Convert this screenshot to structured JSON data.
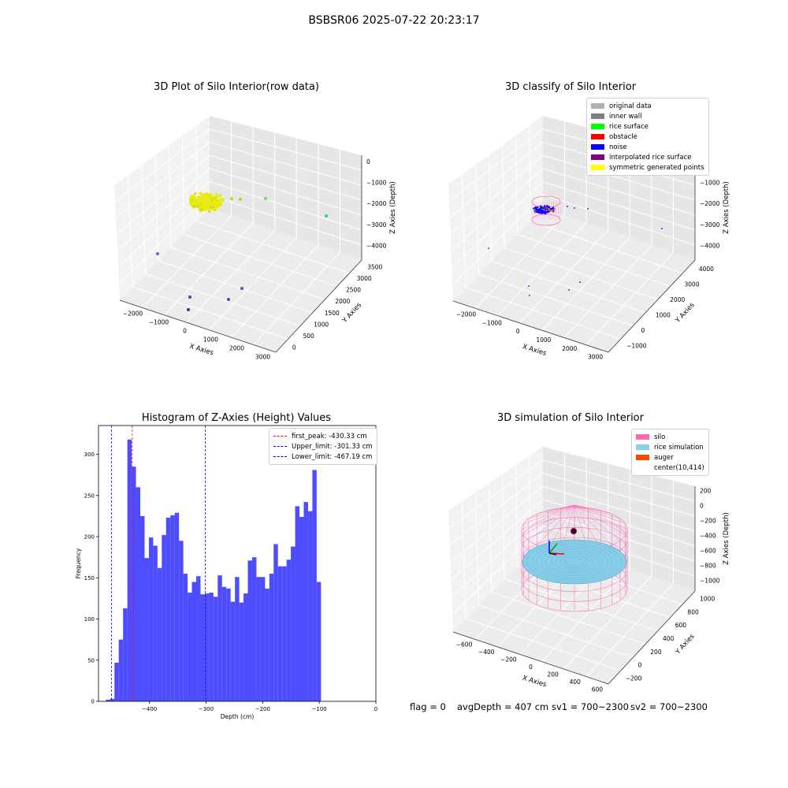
{
  "figure": {
    "suptitle": "BSBSR06 2025-07-22 20:23:17"
  },
  "panel_raw": {
    "title": "3D Plot of Silo Interior(row data)",
    "xlabel": "X Axies",
    "ylabel": "Y Axies",
    "zlabel": "Z Axies (Depth)",
    "xticks": [
      "−2000",
      "−1000",
      "0",
      "1000",
      "2000",
      "3000"
    ],
    "yticks": [
      "0",
      "500",
      "1000",
      "1500",
      "2000",
      "2500",
      "3000",
      "3500"
    ],
    "zticks": [
      "0",
      "−1000",
      "−2000",
      "−3000",
      "−4000"
    ]
  },
  "panel_classify": {
    "title": "3D classify of Silo Interior",
    "xlabel": "X Axies",
    "ylabel": "Y Axies",
    "zlabel": "Z Axies (Depth)",
    "xticks": [
      "−2000",
      "−1000",
      "0",
      "1000",
      "2000",
      "3000"
    ],
    "yticks": [
      "−1000",
      "0",
      "1000",
      "2000",
      "3000",
      "4000"
    ],
    "zticks": [
      "0",
      "−1000",
      "−2000",
      "−3000",
      "−4000"
    ],
    "legend": [
      {
        "label": "original data",
        "color": "#b0b0b0"
      },
      {
        "label": "inner wall",
        "color": "#808080"
      },
      {
        "label": "rice surface",
        "color": "#00ff00"
      },
      {
        "label": "obstacle",
        "color": "#ff0000"
      },
      {
        "label": "noise",
        "color": "#0000ff"
      },
      {
        "label": "interpolated rice surface",
        "color": "#800080"
      },
      {
        "label": "symmetric generated points",
        "color": "#ffff00"
      }
    ]
  },
  "panel_sim": {
    "title": "3D simulation of Silo Interior",
    "xlabel": "X Axies",
    "ylabel": "Y Axies",
    "zlabel": "Z Axies (Depth)",
    "xticks": [
      "−600",
      "−400",
      "−200",
      "0",
      "200",
      "400",
      "600"
    ],
    "yticks": [
      "−200",
      "0",
      "200",
      "400",
      "600",
      "800",
      "1000"
    ],
    "zticks": [
      "200",
      "0",
      "−200",
      "−400",
      "−600",
      "−800",
      "−1000"
    ],
    "legend": [
      {
        "label": "silo",
        "color": "#ff69b4"
      },
      {
        "label": "rice simulation",
        "color": "#87ceeb"
      },
      {
        "label": "auger",
        "color": "#ff4500"
      },
      {
        "label": "center(10,414)",
        "color": "#ffffff"
      }
    ]
  },
  "chart_data": {
    "type": "bar",
    "title": "Histogram of Z-Axies (Height) Values",
    "xlabel": "Depth (cm)",
    "ylabel": "Frequency",
    "xlim": [
      -490,
      0
    ],
    "ylim": [
      0,
      335
    ],
    "xticks": [
      -400,
      -300,
      -200,
      -100,
      0
    ],
    "yticks": [
      0,
      50,
      100,
      150,
      200,
      250,
      300
    ],
    "xtick_labels": [
      "−400",
      "−300",
      "−200",
      "−100",
      "0"
    ],
    "bar_color": "#4d4dff",
    "bin_start": -477,
    "bin_width": 7.6,
    "values": [
      2,
      3,
      47,
      75,
      113,
      318,
      285,
      260,
      225,
      174,
      199,
      189,
      162,
      202,
      223,
      226,
      229,
      195,
      155,
      132,
      145,
      152,
      130,
      131,
      132,
      127,
      153,
      139,
      137,
      121,
      151,
      120,
      131,
      171,
      175,
      151,
      151,
      137,
      155,
      191,
      164,
      164,
      172,
      188,
      237,
      224,
      242,
      231,
      281,
      145
    ],
    "reference_lines": [
      {
        "label": "first_peak: -430.33 cm",
        "x": -430.33,
        "color": "#ff0000"
      },
      {
        "label": "Upper_limit: -301.33 cm",
        "x": -301.33,
        "color": "#0000ff"
      },
      {
        "label": "Lower_limit: -467.19 cm",
        "x": -467.19,
        "color": "#0000ff"
      }
    ]
  },
  "footer": {
    "flag": "flag = 0",
    "avg": "avgDepth = 407 cm",
    "sv1": "sv1 = 700~2300",
    "sv2": "sv2 = 700~2300"
  }
}
